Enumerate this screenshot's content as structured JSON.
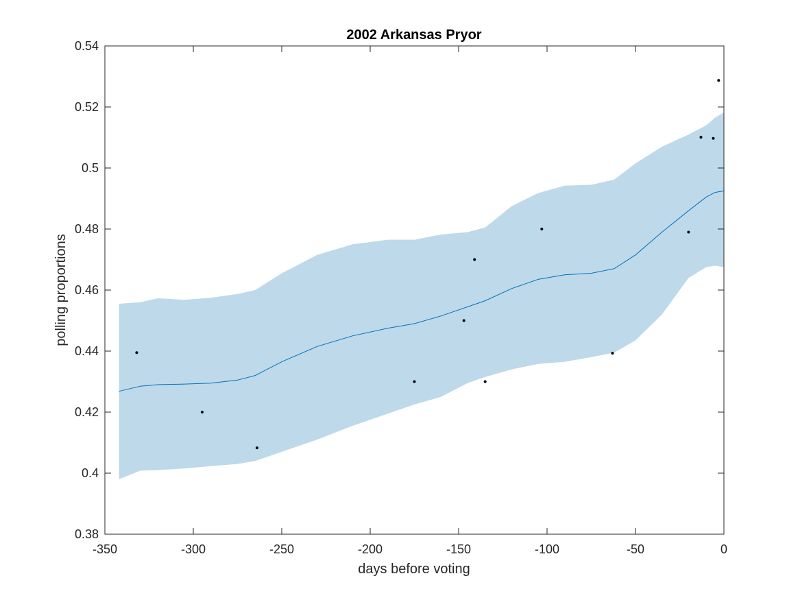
{
  "chart_data": {
    "type": "line",
    "title": "2002 Arkansas Pryor",
    "xlabel": "days before voting",
    "ylabel": "polling proportions",
    "xlim": [
      -350,
      0
    ],
    "ylim": [
      0.38,
      0.54
    ],
    "xticks": [
      -350,
      -300,
      -250,
      -200,
      -150,
      -100,
      -50,
      0
    ],
    "yticks": [
      0.38,
      0.4,
      0.42,
      0.44,
      0.46,
      0.48,
      0.5,
      0.52,
      0.54
    ],
    "xtick_labels": [
      "-350",
      "-300",
      "-250",
      "-200",
      "-150",
      "-100",
      "-50",
      "0"
    ],
    "ytick_labels": [
      "0.38",
      "0.4",
      "0.42",
      "0.44",
      "0.46",
      "0.48",
      "0.5",
      "0.52",
      "0.54"
    ],
    "grid": false,
    "series": [
      {
        "role": "trend-line",
        "color": "#0072BD",
        "x": [
          -342,
          -330,
          -320,
          -305,
          -290,
          -275,
          -265,
          -250,
          -230,
          -210,
          -190,
          -175,
          -160,
          -145,
          -135,
          -120,
          -105,
          -90,
          -75,
          -62,
          -50,
          -35,
          -20,
          -10,
          -5,
          0
        ],
        "y": [
          0.4268,
          0.4285,
          0.429,
          0.4292,
          0.4295,
          0.4305,
          0.432,
          0.4365,
          0.4415,
          0.445,
          0.4475,
          0.449,
          0.4515,
          0.4545,
          0.4565,
          0.4605,
          0.4635,
          0.465,
          0.4655,
          0.467,
          0.4715,
          0.479,
          0.486,
          0.4905,
          0.492,
          0.4925
        ]
      },
      {
        "role": "confidence-band",
        "color": "#BED9EA",
        "x": [
          -342,
          -330,
          -320,
          -305,
          -290,
          -275,
          -265,
          -250,
          -230,
          -210,
          -190,
          -175,
          -160,
          -145,
          -135,
          -120,
          -105,
          -90,
          -75,
          -62,
          -50,
          -35,
          -20,
          -10,
          -5,
          0
        ],
        "upper": [
          0.4555,
          0.456,
          0.4573,
          0.4568,
          0.4575,
          0.4587,
          0.46,
          0.4655,
          0.4715,
          0.475,
          0.4765,
          0.4765,
          0.4782,
          0.479,
          0.4805,
          0.4875,
          0.4918,
          0.4942,
          0.4945,
          0.4962,
          0.5015,
          0.507,
          0.511,
          0.514,
          0.5165,
          0.5182
        ],
        "lower": [
          0.398,
          0.4008,
          0.401,
          0.4015,
          0.4023,
          0.403,
          0.404,
          0.407,
          0.411,
          0.4155,
          0.4195,
          0.4225,
          0.425,
          0.4295,
          0.4315,
          0.434,
          0.4358,
          0.4365,
          0.438,
          0.4395,
          0.4435,
          0.452,
          0.464,
          0.4675,
          0.468,
          0.4675
        ]
      },
      {
        "role": "poll-points",
        "color": "#000000",
        "x": [
          -332,
          -295,
          -264,
          -175,
          -147,
          -141,
          -135,
          -103,
          -63,
          -20,
          -13,
          -6,
          -3
        ],
        "y": [
          0.4395,
          0.42,
          0.4083,
          0.43,
          0.45,
          0.47,
          0.43,
          0.48,
          0.4393,
          0.479,
          0.5101,
          0.5097,
          0.5287
        ]
      }
    ]
  }
}
